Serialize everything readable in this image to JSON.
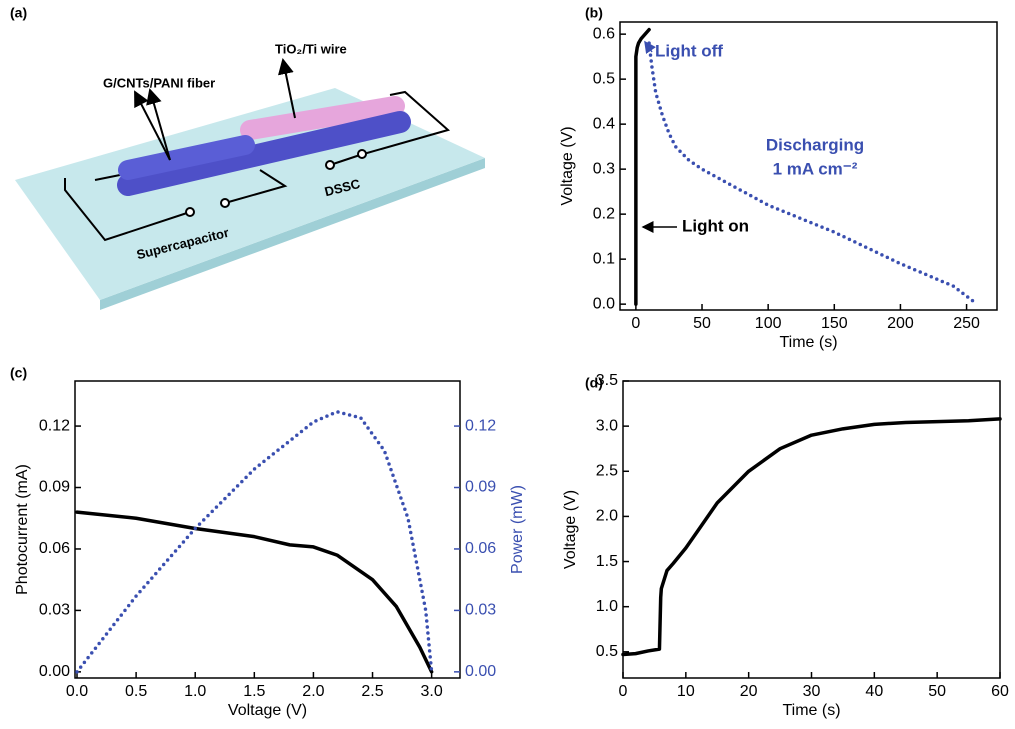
{
  "panel_labels": [
    "(a)",
    "(b)",
    "(c)",
    "(d)"
  ],
  "diagram": {
    "fiber_label": "G/CNTs/PANI fiber",
    "wire_label": "TiO₂/Ti wire",
    "supercapacitor_label": "Supercapacitor",
    "dssc_label": "DSSC"
  },
  "chart_data": [
    {
      "type": "line",
      "xlabel": "Time (s)",
      "ylabel": "Voltage (V)",
      "xlim": [
        -12,
        273
      ],
      "ylim": [
        -0.013,
        0.627
      ],
      "xticks": [
        0,
        50,
        100,
        150,
        200,
        250
      ],
      "yticks": [
        {
          "value": 0,
          "label": "0.0"
        },
        0.1,
        0.2,
        0.3,
        0.4,
        0.5,
        0.6
      ],
      "series": [
        {
          "color": "#000000",
          "line_style": "solid",
          "x": [
            0,
            0,
            1,
            2,
            4,
            7,
            10
          ],
          "values": [
            0,
            0.55,
            0.57,
            0.58,
            0.59,
            0.6,
            0.61
          ]
        },
        {
          "color": "#3a4fb0",
          "line_style": "dotted",
          "x": [
            10,
            12,
            15,
            20,
            25,
            30,
            40,
            50,
            75,
            100,
            150,
            200,
            240,
            258
          ],
          "values": [
            0.58,
            0.53,
            0.47,
            0.42,
            0.38,
            0.35,
            0.32,
            0.3,
            0.26,
            0.22,
            0.16,
            0.09,
            0.04,
            0
          ]
        }
      ],
      "annotations": [
        {
          "text": "Light off",
          "color": "#3a4fb0"
        },
        {
          "text": "Discharging",
          "color": "#3a4fb0"
        },
        {
          "text": "1 mA cm⁻²",
          "color": "#3a4fb0"
        },
        {
          "text": "Light on",
          "color": "#000000"
        }
      ]
    },
    {
      "type": "line",
      "xlabel": "Voltage (V)",
      "ylabel": "Photocurrent (mA)",
      "y2label": "Power (mW)",
      "xlim": [
        -0.017,
        3.24
      ],
      "ylim": [
        -0.003,
        0.142
      ],
      "y2lim": [
        -0.003,
        0.142
      ],
      "xticks": [
        {
          "value": 0,
          "label": "0.0"
        },
        0.5,
        {
          "value": 1,
          "label": "1.0"
        },
        1.5,
        {
          "value": 2,
          "label": "2.0"
        },
        2.5,
        {
          "value": 3,
          "label": "3.0"
        }
      ],
      "yticks": [
        {
          "value": 0,
          "label": "0.00"
        },
        {
          "value": 0.03,
          "label": "0.03"
        },
        {
          "value": 0.06,
          "label": "0.06"
        },
        {
          "value": 0.09,
          "label": "0.09"
        },
        {
          "value": 0.12,
          "label": "0.12"
        }
      ],
      "y2ticks": [
        {
          "value": 0,
          "label": "0.00"
        },
        {
          "value": 0.03,
          "label": "0.03"
        },
        {
          "value": 0.06,
          "label": "0.06"
        },
        {
          "value": 0.09,
          "label": "0.09"
        },
        {
          "value": 0.12,
          "label": "0.12"
        }
      ],
      "series": [
        {
          "color": "#000000",
          "line_style": "solid",
          "x": [
            0,
            0.5,
            1,
            1.5,
            1.8,
            2,
            2.2,
            2.5,
            2.7,
            2.9,
            3.0
          ],
          "values": [
            0.078,
            0.075,
            0.07,
            0.066,
            0.062,
            0.061,
            0.057,
            0.045,
            0.032,
            0.012,
            0
          ]
        },
        {
          "color": "#3a4fb0",
          "line_style": "dotted",
          "axis": "y2",
          "x": [
            0,
            0.5,
            1,
            1.5,
            2,
            2.2,
            2.4,
            2.6,
            2.8,
            2.95,
            3.0
          ],
          "values": [
            0,
            0.037,
            0.07,
            0.099,
            0.122,
            0.127,
            0.124,
            0.108,
            0.075,
            0.03,
            0
          ]
        }
      ]
    },
    {
      "type": "line",
      "xlabel": "Time (s)",
      "ylabel": "Voltage (V)",
      "xlim": [
        0,
        60
      ],
      "ylim": [
        0.21,
        3.5
      ],
      "xticks": [
        0,
        10,
        20,
        30,
        40,
        50,
        60
      ],
      "yticks": [
        0.5,
        {
          "value": 1,
          "label": "1.0"
        },
        1.5,
        {
          "value": 2,
          "label": "2.0"
        },
        2.5,
        {
          "value": 3,
          "label": "3.0"
        },
        3.5
      ],
      "series": [
        {
          "color": "#000000",
          "line_style": "solid",
          "x": [
            0,
            2,
            4,
            5.8,
            6,
            6.1,
            7,
            8,
            10,
            12,
            15,
            20,
            25,
            30,
            35,
            40,
            45,
            50,
            55,
            60
          ],
          "values": [
            0.47,
            0.48,
            0.51,
            0.53,
            1.1,
            1.2,
            1.4,
            1.48,
            1.65,
            1.85,
            2.15,
            2.5,
            2.75,
            2.9,
            2.97,
            3.02,
            3.04,
            3.05,
            3.06,
            3.08
          ]
        }
      ]
    }
  ]
}
